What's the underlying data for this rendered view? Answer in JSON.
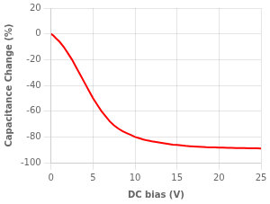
{
  "chart_data": {
    "type": "line",
    "xlabel": "DC bias (V)",
    "ylabel": "Capacitance Change (%)",
    "x": [
      0,
      0.3,
      0.6,
      1,
      1.5,
      2,
      2.5,
      3,
      3.5,
      4,
      4.5,
      5,
      5.5,
      6,
      6.5,
      7,
      7.5,
      8,
      8.5,
      9,
      9.5,
      10,
      10.5,
      11,
      11.5,
      12,
      12.5,
      13,
      13.5,
      14,
      14.5,
      15,
      15.5,
      16,
      16.5,
      17,
      17.5,
      18,
      18.5,
      19,
      19.5,
      20,
      20.5,
      21,
      21.5,
      22,
      22.5,
      23,
      23.5,
      24,
      24.5,
      25
    ],
    "values": [
      0,
      -1.5,
      -3.5,
      -6,
      -10,
      -15,
      -20,
      -26,
      -32,
      -38,
      -44,
      -50,
      -55,
      -60,
      -64,
      -68,
      -71,
      -73.5,
      -75.5,
      -77,
      -78.5,
      -80,
      -81,
      -82,
      -82.8,
      -83.5,
      -84,
      -84.5,
      -85,
      -85.5,
      -86,
      -86.3,
      -86.6,
      -87,
      -87.2,
      -87.4,
      -87.6,
      -87.8,
      -88,
      -88.1,
      -88.2,
      -88.3,
      -88.4,
      -88.5,
      -88.5,
      -88.6,
      -88.7,
      -88.7,
      -88.8,
      -88.8,
      -88.9,
      -89
    ],
    "color": "#ff0000",
    "xlim": [
      0,
      25
    ],
    "ylim": [
      -100,
      20
    ],
    "xticks": [
      0,
      5,
      10,
      15,
      20,
      25
    ],
    "yticks": [
      -100,
      -80,
      -60,
      -40,
      -20,
      0,
      20
    ],
    "grid": true
  }
}
